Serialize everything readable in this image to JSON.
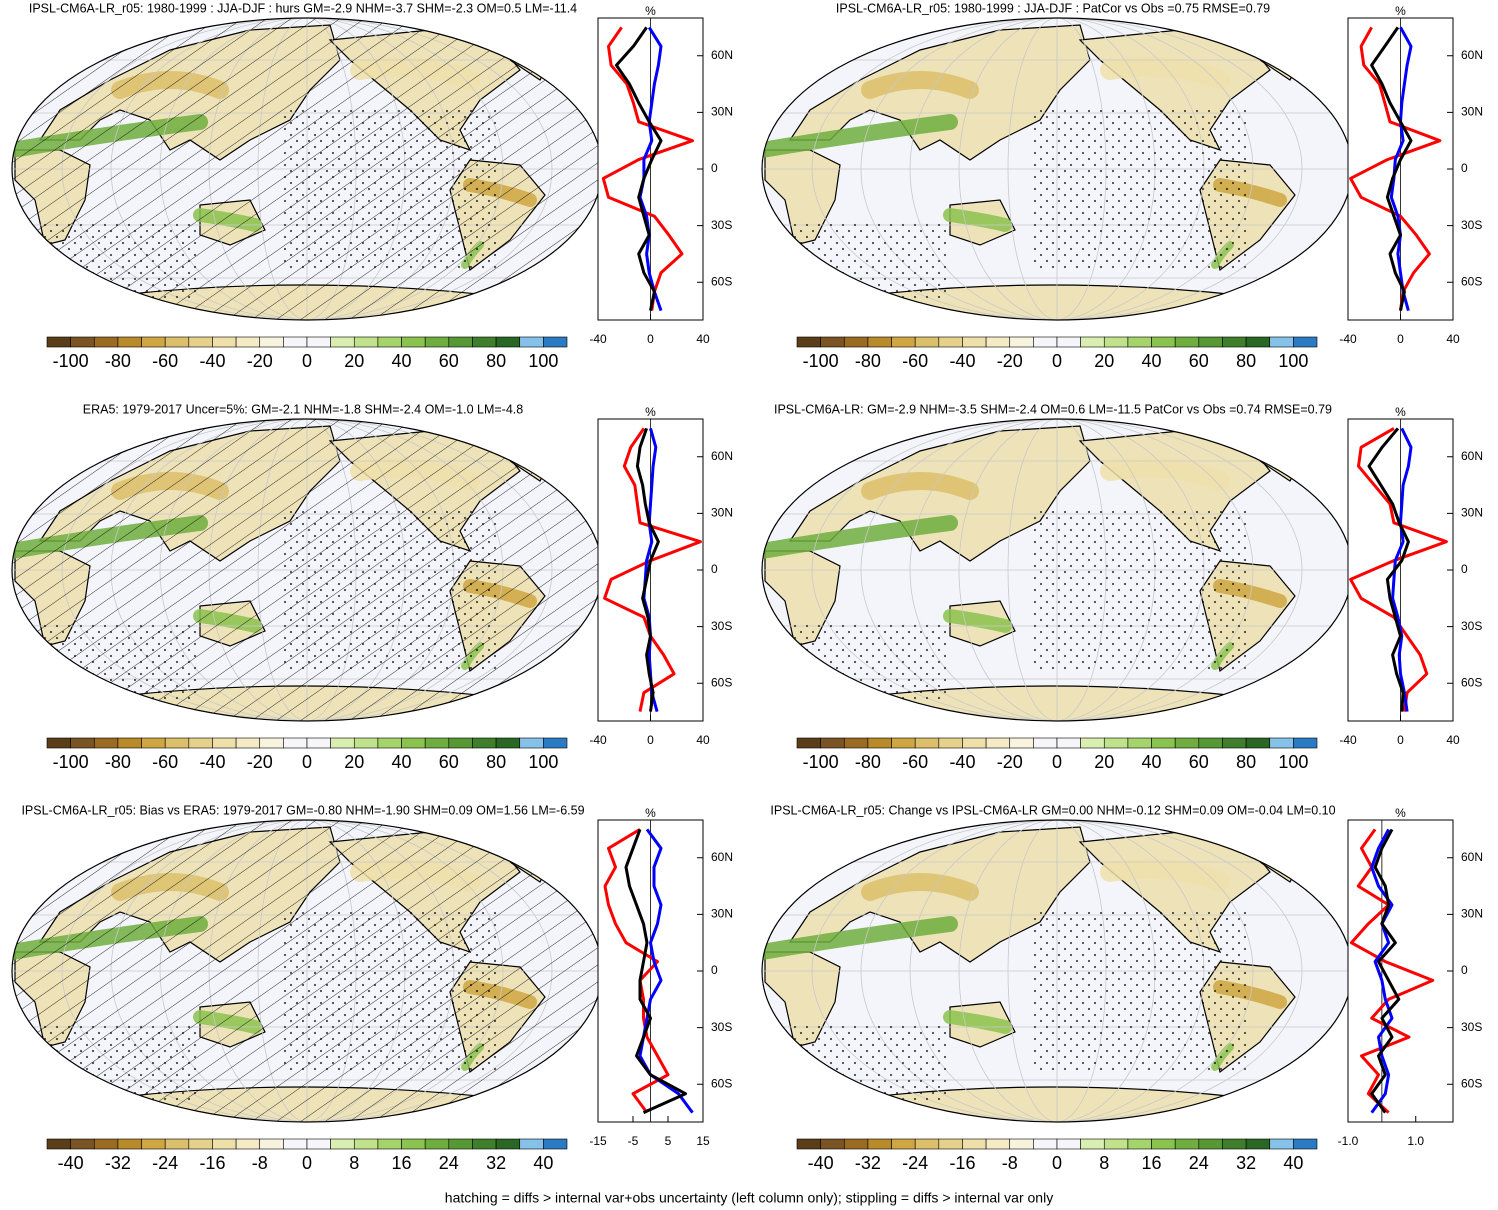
{
  "chart_data": [
    {
      "type": "line",
      "title": "IPSL-CM6A-LR_r05: 1980-1999 : JJA-DJF : hurs GM=-2.9 NHM=-3.7 SHM=-2.3 OM=0.5 LM=-11.4",
      "x_title": "%",
      "colorbar_labels": [
        -100,
        -80,
        -60,
        -40,
        -20,
        0,
        20,
        40,
        60,
        80,
        100
      ],
      "lat": [
        75,
        65,
        55,
        45,
        35,
        25,
        15,
        5,
        -5,
        -15,
        -25,
        -35,
        -45,
        -55,
        -65,
        -75
      ],
      "series": [
        {
          "color": "#ff0000",
          "values": [
            -22,
            -32,
            -30,
            -18,
            -13,
            -9,
            32,
            -9,
            -36,
            -32,
            3,
            14,
            24,
            8,
            3,
            1
          ]
        },
        {
          "color": "#0000ff",
          "values": [
            -1,
            8,
            6,
            3,
            1,
            -1,
            1,
            -5,
            -5,
            -8,
            -3,
            -1,
            -3,
            -1,
            3,
            8
          ]
        },
        {
          "color": "#000000",
          "values": [
            -3,
            -13,
            -26,
            -16,
            -9,
            -1,
            8,
            1,
            -5,
            -9,
            -5,
            -1,
            -9,
            -5,
            3,
            0
          ]
        }
      ],
      "xlim": [
        -40,
        40
      ],
      "xticks": [
        -40,
        0,
        40
      ],
      "ylim": [
        -80,
        80
      ],
      "yticks": [
        {
          "value": 60,
          "label": "60N"
        },
        {
          "value": 30,
          "label": "30N"
        },
        0,
        {
          "value": -30,
          "label": "30S"
        },
        {
          "value": -60,
          "label": "60S"
        }
      ]
    },
    {
      "type": "line",
      "title": "IPSL-CM6A-LR_r05: 1980-1999 : JJA-DJF : PatCor vs Obs =0.75 RMSE=0.79",
      "x_title": "%",
      "colorbar_labels": [
        -100,
        -80,
        -60,
        -40,
        -20,
        0,
        20,
        40,
        60,
        80,
        100
      ],
      "lat": [
        75,
        65,
        55,
        45,
        35,
        25,
        15,
        5,
        -5,
        -15,
        -25,
        -35,
        -45,
        -55,
        -65,
        -75
      ],
      "series": [
        {
          "color": "#ff0000",
          "values": [
            -22,
            -30,
            -28,
            -16,
            -12,
            -8,
            30,
            -10,
            -38,
            -30,
            0,
            12,
            22,
            10,
            2,
            0
          ]
        },
        {
          "color": "#0000ff",
          "values": [
            0,
            8,
            5,
            3,
            1,
            0,
            2,
            -4,
            -5,
            -7,
            -2,
            0,
            -2,
            0,
            2,
            6
          ]
        },
        {
          "color": "#000000",
          "values": [
            -2,
            -12,
            -22,
            -14,
            -8,
            0,
            8,
            0,
            -6,
            -10,
            -5,
            0,
            -8,
            -4,
            3,
            0
          ]
        }
      ],
      "xlim": [
        -40,
        40
      ],
      "xticks": [
        -40,
        0,
        40
      ],
      "ylim": [
        -80,
        80
      ],
      "yticks": [
        {
          "value": 60,
          "label": "60N"
        },
        {
          "value": 30,
          "label": "30N"
        },
        0,
        {
          "value": -30,
          "label": "30S"
        },
        {
          "value": -60,
          "label": "60S"
        }
      ]
    },
    {
      "type": "line",
      "title": "ERA5: 1979-2017 Uncer=5%: GM=-2.1 NHM=-1.8 SHM=-2.4 OM=-1.0 LM=-4.8",
      "x_title": "%",
      "colorbar_labels": [
        -100,
        -80,
        -60,
        -40,
        -20,
        0,
        20,
        40,
        60,
        80,
        100
      ],
      "lat": [
        75,
        65,
        55,
        45,
        35,
        25,
        15,
        5,
        -5,
        -15,
        -25,
        -35,
        -45,
        -55,
        -65,
        -75
      ],
      "series": [
        {
          "color": "#ff0000",
          "values": [
            -5,
            -15,
            -20,
            -12,
            -10,
            -8,
            38,
            0,
            -30,
            -35,
            -5,
            0,
            10,
            18,
            -5,
            -8
          ]
        },
        {
          "color": "#0000ff",
          "values": [
            0,
            4,
            2,
            1,
            0,
            -1,
            1,
            -3,
            -4,
            -5,
            -1,
            0,
            -1,
            0,
            1,
            5
          ]
        },
        {
          "color": "#000000",
          "values": [
            -3,
            -8,
            -10,
            -6,
            -4,
            -1,
            6,
            0,
            -3,
            -6,
            -2,
            0,
            -3,
            -1,
            2,
            0
          ]
        }
      ],
      "xlim": [
        -40,
        40
      ],
      "xticks": [
        -40,
        0,
        40
      ],
      "ylim": [
        -80,
        80
      ],
      "yticks": [
        {
          "value": 60,
          "label": "60N"
        },
        {
          "value": 30,
          "label": "30N"
        },
        0,
        {
          "value": -30,
          "label": "30S"
        },
        {
          "value": -60,
          "label": "60S"
        }
      ]
    },
    {
      "type": "line",
      "title": "IPSL-CM6A-LR: GM=-2.9 NHM=-3.5 SHM=-2.4 OM=0.6 LM=-11.5 PatCor vs Obs =0.74 RMSE=0.79",
      "x_title": "%",
      "colorbar_labels": [
        -100,
        -80,
        -60,
        -40,
        -20,
        0,
        20,
        40,
        60,
        80,
        100
      ],
      "lat": [
        75,
        65,
        55,
        45,
        35,
        25,
        15,
        5,
        -5,
        -15,
        -25,
        -35,
        -45,
        -55,
        -65,
        -75
      ],
      "series": [
        {
          "color": "#ff0000",
          "values": [
            -5,
            -30,
            -32,
            -20,
            -8,
            -5,
            35,
            -5,
            -38,
            -30,
            -5,
            5,
            15,
            20,
            5,
            3
          ]
        },
        {
          "color": "#0000ff",
          "values": [
            1,
            8,
            6,
            2,
            1,
            0,
            2,
            -4,
            -5,
            -6,
            -2,
            1,
            -1,
            0,
            3,
            5
          ]
        },
        {
          "color": "#000000",
          "values": [
            -2,
            -14,
            -24,
            -15,
            -6,
            -1,
            6,
            1,
            -10,
            -8,
            -4,
            0,
            -6,
            -3,
            2,
            1
          ]
        }
      ],
      "xlim": [
        -40,
        40
      ],
      "xticks": [
        -40,
        0,
        40
      ],
      "ylim": [
        -80,
        80
      ],
      "yticks": [
        {
          "value": 60,
          "label": "60N"
        },
        {
          "value": 30,
          "label": "30N"
        },
        0,
        {
          "value": -30,
          "label": "30S"
        },
        {
          "value": -60,
          "label": "60S"
        }
      ]
    },
    {
      "type": "line",
      "title": "IPSL-CM6A-LR_r05: Bias vs ERA5: 1979-2017 GM=-0.80 NHM=-1.90 SHM=0.09 OM=1.56 LM=-6.59",
      "x_title": "%",
      "colorbar_labels": [
        -40,
        -32,
        -24,
        -16,
        -8,
        0,
        8,
        16,
        24,
        32,
        40
      ],
      "lat": [
        75,
        65,
        55,
        45,
        35,
        25,
        15,
        5,
        -5,
        -15,
        -25,
        -35,
        -45,
        -55,
        -65,
        -75
      ],
      "series": [
        {
          "color": "#ff0000",
          "values": [
            -3,
            -12,
            -10,
            -13,
            -12,
            -10,
            -7,
            2,
            -3,
            -2,
            -2,
            -1,
            2,
            5,
            -5,
            -1
          ]
        },
        {
          "color": "#0000ff",
          "values": [
            -1,
            3,
            1,
            1,
            3,
            2,
            0,
            1,
            3,
            0,
            -1,
            -2,
            -3,
            0,
            8,
            12
          ]
        },
        {
          "color": "#000000",
          "values": [
            -3,
            -5,
            -7,
            -6,
            -4,
            -2,
            -1,
            -2,
            -3,
            -3,
            0,
            -2,
            -4,
            0,
            10,
            -2
          ]
        }
      ],
      "xlim": [
        -15,
        15
      ],
      "xticks": [
        -15,
        -5,
        5,
        15
      ],
      "ylim": [
        -80,
        80
      ],
      "yticks": [
        {
          "value": 60,
          "label": "60N"
        },
        {
          "value": 30,
          "label": "30N"
        },
        0,
        {
          "value": -30,
          "label": "30S"
        },
        {
          "value": -60,
          "label": "60S"
        }
      ]
    },
    {
      "type": "line",
      "title": "IPSL-CM6A-LR_r05: Change vs IPSL-CM6A-LR GM=0.00 NHM=-0.12 SHM=0.09 OM=-0.04 LM=0.10",
      "x_title": "%",
      "colorbar_labels": [
        -40,
        -32,
        -24,
        -16,
        -8,
        0,
        8,
        16,
        24,
        32,
        40
      ],
      "lat": [
        75,
        65,
        55,
        45,
        35,
        25,
        15,
        5,
        -5,
        -15,
        -25,
        -35,
        -45,
        -55,
        -65,
        -75
      ],
      "series": [
        {
          "color": "#ff0000",
          "values": [
            -0.2,
            -0.6,
            -0.3,
            -0.7,
            0.2,
            -0.4,
            -0.9,
            0.1,
            1.5,
            0.2,
            -0.3,
            0.8,
            -0.6,
            -0.1,
            -0.4,
            0.2
          ]
        },
        {
          "color": "#0000ff",
          "values": [
            0.2,
            -0.1,
            -0.3,
            -0.1,
            0.3,
            0,
            0.2,
            -0.2,
            0,
            0.1,
            0.3,
            -0.1,
            0,
            0.2,
            0.1,
            -0.3
          ]
        },
        {
          "color": "#000000",
          "values": [
            0.3,
            0,
            -0.2,
            0.1,
            0.2,
            0,
            0.4,
            -0.1,
            0.2,
            0.5,
            0,
            0.3,
            -0.1,
            0.1,
            -0.3,
            0.1
          ]
        }
      ],
      "xlim": [
        -1,
        2.1
      ],
      "xticks": [
        {
          "value": -1,
          "label": "-1.0"
        },
        {
          "value": 1,
          "label": "1.0"
        }
      ],
      "ylim": [
        -80,
        80
      ],
      "yticks": [
        {
          "value": 60,
          "label": "60N"
        },
        {
          "value": 30,
          "label": "30N"
        },
        0,
        {
          "value": -30,
          "label": "30S"
        },
        {
          "value": -60,
          "label": "60S"
        }
      ]
    }
  ],
  "colorbar_colors": [
    "#5c3d1a",
    "#7a5422",
    "#9c6b22",
    "#b88a2a",
    "#cfa642",
    "#dcbf6a",
    "#e6d18c",
    "#efe0aa",
    "#f4ebc6",
    "#f8f3de",
    "#f5f5fa",
    "#f5f5fa",
    "#d9eeb0",
    "#bfe28a",
    "#a5d46a",
    "#8bc34f",
    "#6fae3e",
    "#569833",
    "#3f7f2c",
    "#2a6624",
    "#85c1e9",
    "#2a7ac4"
  ],
  "footnote": "hatching = diffs > internal var+obs uncertainty (left column only); stippling = diffs > internal var only"
}
